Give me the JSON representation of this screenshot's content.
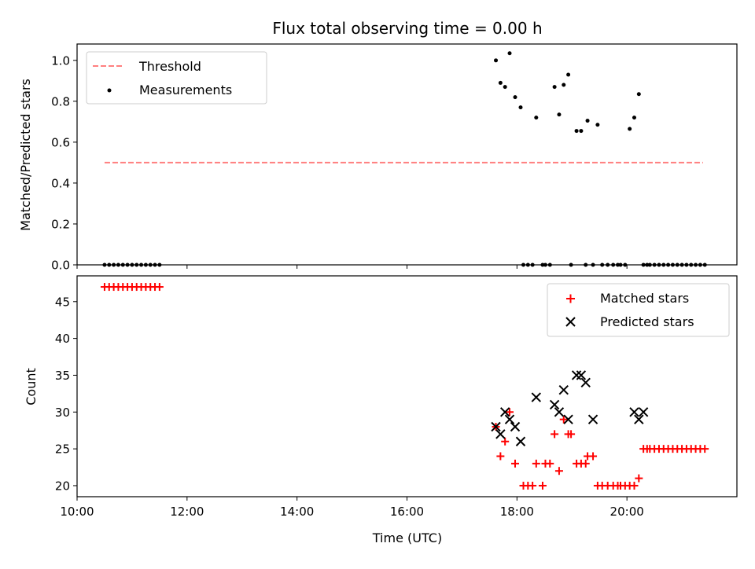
{
  "title": "Flux total observing time = 0.00 h",
  "colors": {
    "threshold": "#ff7f7f",
    "measurement": "#000000",
    "matched": "#ff0000",
    "predicted": "#000000"
  },
  "chart_data": [
    {
      "type": "scatter",
      "ylabel": "Matched/Predicted stars",
      "xlim": [
        600,
        1320
      ],
      "ylim": [
        0,
        1.08
      ],
      "x_ticks": [
        "10:00",
        "12:00",
        "14:00",
        "16:00",
        "18:00",
        "20:00"
      ],
      "y_ticks": [
        "0.0",
        "0.2",
        "0.4",
        "0.6",
        "0.8",
        "1.0"
      ],
      "legend_position": "top-left",
      "series": [
        {
          "name": "Threshold",
          "kind": "line",
          "x": [
            630,
            1283
          ],
          "y": [
            0.5,
            0.5
          ]
        },
        {
          "name": "Measurements",
          "kind": "scatter",
          "x": [
            630,
            635,
            640,
            645,
            650,
            655,
            660,
            665,
            670,
            675,
            680,
            685,
            690,
            1057,
            1062,
            1067,
            1072,
            1078,
            1084,
            1087,
            1092,
            1097,
            1101,
            1108,
            1111,
            1116,
            1121,
            1126,
            1131,
            1136,
            1139,
            1145,
            1150,
            1155,
            1157,
            1163,
            1168,
            1173,
            1179,
            1185,
            1190,
            1193,
            1198,
            1203,
            1208,
            1213,
            1218,
            1222,
            1225,
            1230,
            1235,
            1240,
            1245,
            1250,
            1255,
            1260,
            1265,
            1270,
            1275,
            1280,
            1285
          ],
          "y": [
            0,
            0,
            0,
            0,
            0,
            0,
            0,
            0,
            0,
            0,
            0,
            0,
            0,
            1.0,
            0.89,
            0.87,
            1.035,
            0.82,
            0.77,
            0,
            0,
            0,
            0.72,
            0,
            0,
            0,
            0.87,
            0.735,
            0.88,
            0.93,
            0,
            0.655,
            0.655,
            0,
            0.705,
            0,
            0.685,
            0,
            0,
            0,
            0,
            0,
            0,
            0.665,
            0.72,
            0.835,
            0,
            0,
            0,
            0,
            0,
            0,
            0,
            0,
            0,
            0,
            0,
            0,
            0,
            0,
            0
          ]
        }
      ]
    },
    {
      "type": "scatter",
      "ylabel": "Count",
      "xlabel": "Time (UTC)",
      "xlim": [
        600,
        1320
      ],
      "ylim": [
        18.5,
        48.5
      ],
      "x_ticks": [
        "10:00",
        "12:00",
        "14:00",
        "16:00",
        "18:00",
        "20:00"
      ],
      "y_ticks": [
        "20",
        "25",
        "30",
        "35",
        "40",
        "45"
      ],
      "legend_position": "top-right",
      "series": [
        {
          "name": "Matched stars",
          "kind": "plus",
          "x": [
            630,
            635,
            640,
            645,
            650,
            655,
            660,
            665,
            670,
            675,
            680,
            685,
            690,
            1057,
            1062,
            1067,
            1072,
            1078,
            1087,
            1092,
            1097,
            1101,
            1108,
            1111,
            1116,
            1121,
            1126,
            1131,
            1136,
            1139,
            1145,
            1150,
            1155,
            1157,
            1163,
            1168,
            1173,
            1179,
            1185,
            1190,
            1193,
            1198,
            1203,
            1208,
            1213,
            1218,
            1222,
            1225,
            1230,
            1235,
            1240,
            1245,
            1250,
            1255,
            1260,
            1265,
            1270,
            1275,
            1280,
            1285
          ],
          "y": [
            47,
            47,
            47,
            47,
            47,
            47,
            47,
            47,
            47,
            47,
            47,
            47,
            47,
            28,
            24,
            26,
            30,
            23,
            20,
            20,
            20,
            23,
            20,
            23,
            23,
            27,
            22,
            29,
            27,
            27,
            23,
            23,
            23,
            24,
            24,
            20,
            20,
            20,
            20,
            20,
            20,
            20,
            20,
            20,
            21,
            25,
            25,
            25,
            25,
            25,
            25,
            25,
            25,
            25,
            25,
            25,
            25,
            25,
            25,
            25
          ]
        },
        {
          "name": "Predicted stars",
          "kind": "x",
          "x": [
            1057,
            1062,
            1067,
            1072,
            1078,
            1084,
            1101,
            1121,
            1126,
            1131,
            1136,
            1145,
            1150,
            1155,
            1163,
            1208,
            1213,
            1218
          ],
          "y": [
            28,
            27,
            30,
            29,
            28,
            26,
            32,
            31,
            30,
            33,
            29,
            35,
            35,
            34,
            29,
            30,
            29,
            30
          ]
        }
      ]
    }
  ]
}
